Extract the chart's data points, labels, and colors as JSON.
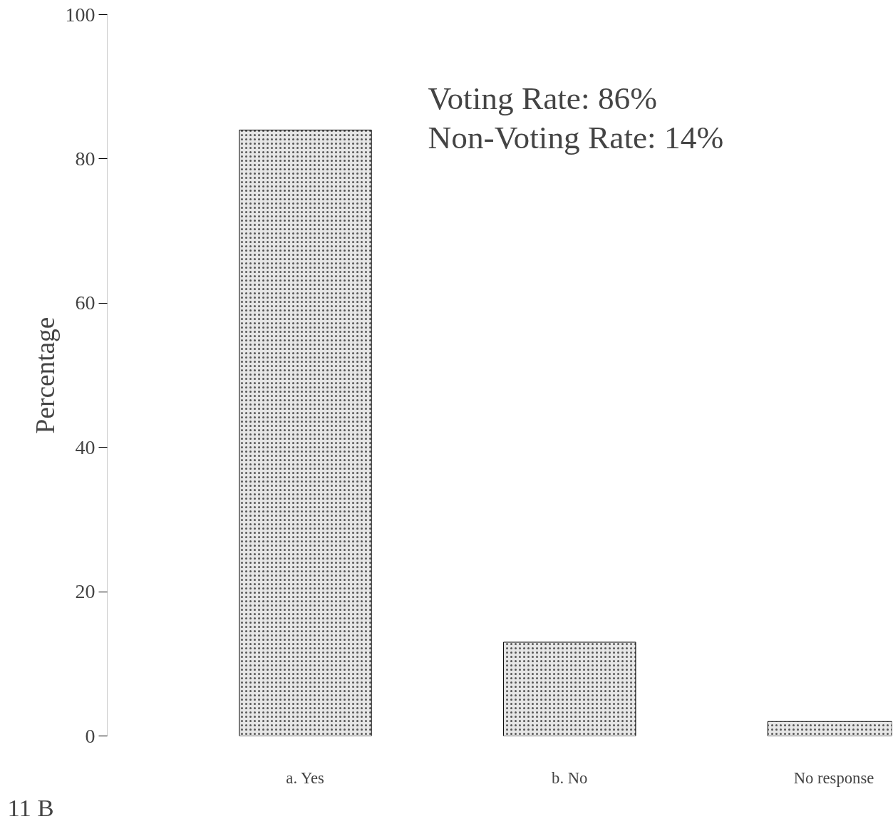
{
  "chart_data": {
    "type": "bar",
    "ylabel": "Percentage",
    "categories": [
      "a. Yes",
      "b. No",
      "No response"
    ],
    "values": [
      84,
      13,
      2
    ],
    "color": "#e6e6e6",
    "ylim": [
      0,
      100
    ],
    "yticks": [
      0,
      20,
      40,
      60,
      80,
      100
    ],
    "grid": false,
    "annotations": [
      "Voting Rate: 86%",
      "Non-Voting Rate: 14%",
      "11  B"
    ]
  }
}
